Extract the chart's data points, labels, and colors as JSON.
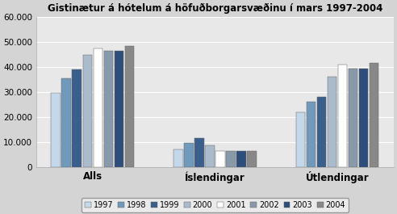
{
  "title": "Gistinætur á hótelum á höfuðborgarsvæðinu í mars 1997-2004",
  "groups": [
    "Alls",
    "Íslendingar",
    "Útlendingar"
  ],
  "years": [
    "1997",
    "1998",
    "1999",
    "2000",
    "2001",
    "2002",
    "2003",
    "2004"
  ],
  "values": {
    "Alls": [
      29500,
      35500,
      39000,
      45000,
      47500,
      46500,
      46500,
      48500
    ],
    "Íslendingar": [
      7000,
      9500,
      11500,
      8500,
      6500,
      6300,
      6300,
      6500
    ],
    "Útlendingar": [
      22000,
      26000,
      28000,
      36000,
      41000,
      39500,
      39500,
      41500
    ]
  },
  "colors": [
    "#c5d8ea",
    "#7099bb",
    "#3b5f8c",
    "#aabbcc",
    "#ffffff",
    "#8899aa",
    "#2d4d7a",
    "#888888"
  ],
  "ylim": [
    0,
    60000
  ],
  "yticks": [
    0,
    10000,
    20000,
    30000,
    40000,
    50000,
    60000
  ],
  "ytick_labels": [
    "0",
    "10.000",
    "20.000",
    "30.000",
    "40.000",
    "50.000",
    "60.000"
  ],
  "fig_bg_color": "#d4d4d4",
  "plot_bg_color": "#e8e8e8",
  "title_fontsize": 8.5,
  "legend_fontsize": 7.0,
  "tick_fontsize": 7.5,
  "xlabel_fontsize": 8.5,
  "bar_width": 0.055,
  "group_positions": [
    0.28,
    0.92,
    1.56
  ]
}
